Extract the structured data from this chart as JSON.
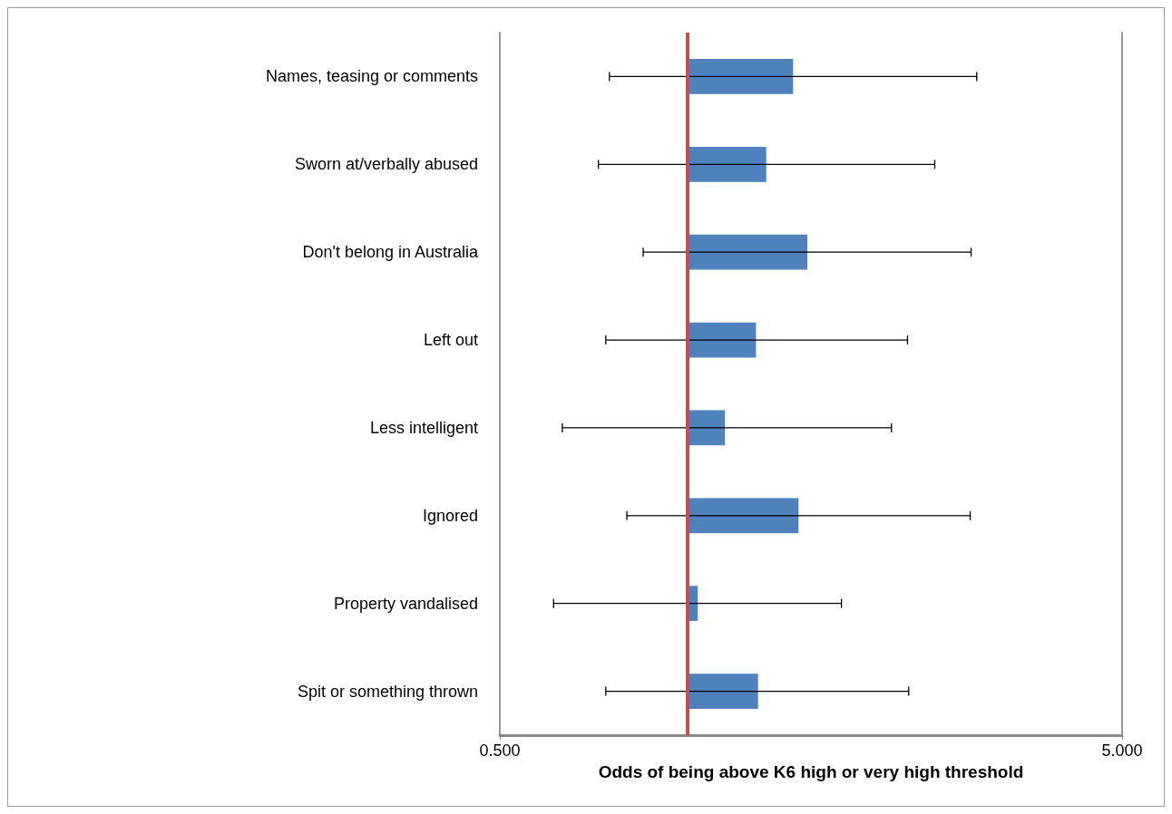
{
  "chart_data": {
    "type": "bar",
    "orientation": "horizontal",
    "log": "x",
    "xlabel": "Odds of being above K6 high or very high threshold",
    "categories": [
      "Names, teasing or comments",
      "Sworn at/verbally abused",
      "Don't belong in Australia",
      "Left out",
      "Less intelligent",
      "Ignored",
      "Property vandalised",
      "Spit or something thrown"
    ],
    "base": [
      1,
      1,
      1,
      1,
      1,
      1,
      1,
      1
    ],
    "values": [
      0.48,
      0.34,
      0.56,
      0.29,
      0.15,
      0.51,
      0.04,
      0.3
    ],
    "errors": [
      [
        0.75,
        2.92
      ],
      [
        0.72,
        2.5
      ],
      [
        0.85,
        2.86
      ],
      [
        0.74,
        2.26
      ],
      [
        0.63,
        2.13
      ],
      [
        0.8,
        2.85
      ],
      [
        0.61,
        1.77
      ],
      [
        0.74,
        2.27
      ]
    ],
    "color": "#4f81bd",
    "xlim": [
      0.5,
      5
    ],
    "xticks": [
      {
        "value": 0.5,
        "label": "0.500"
      },
      {
        "value": 5,
        "label": "5.000"
      }
    ],
    "legend": false,
    "ref_lines": [
      {
        "axis": "x",
        "value": 1,
        "color": "#c0504d"
      }
    ]
  }
}
